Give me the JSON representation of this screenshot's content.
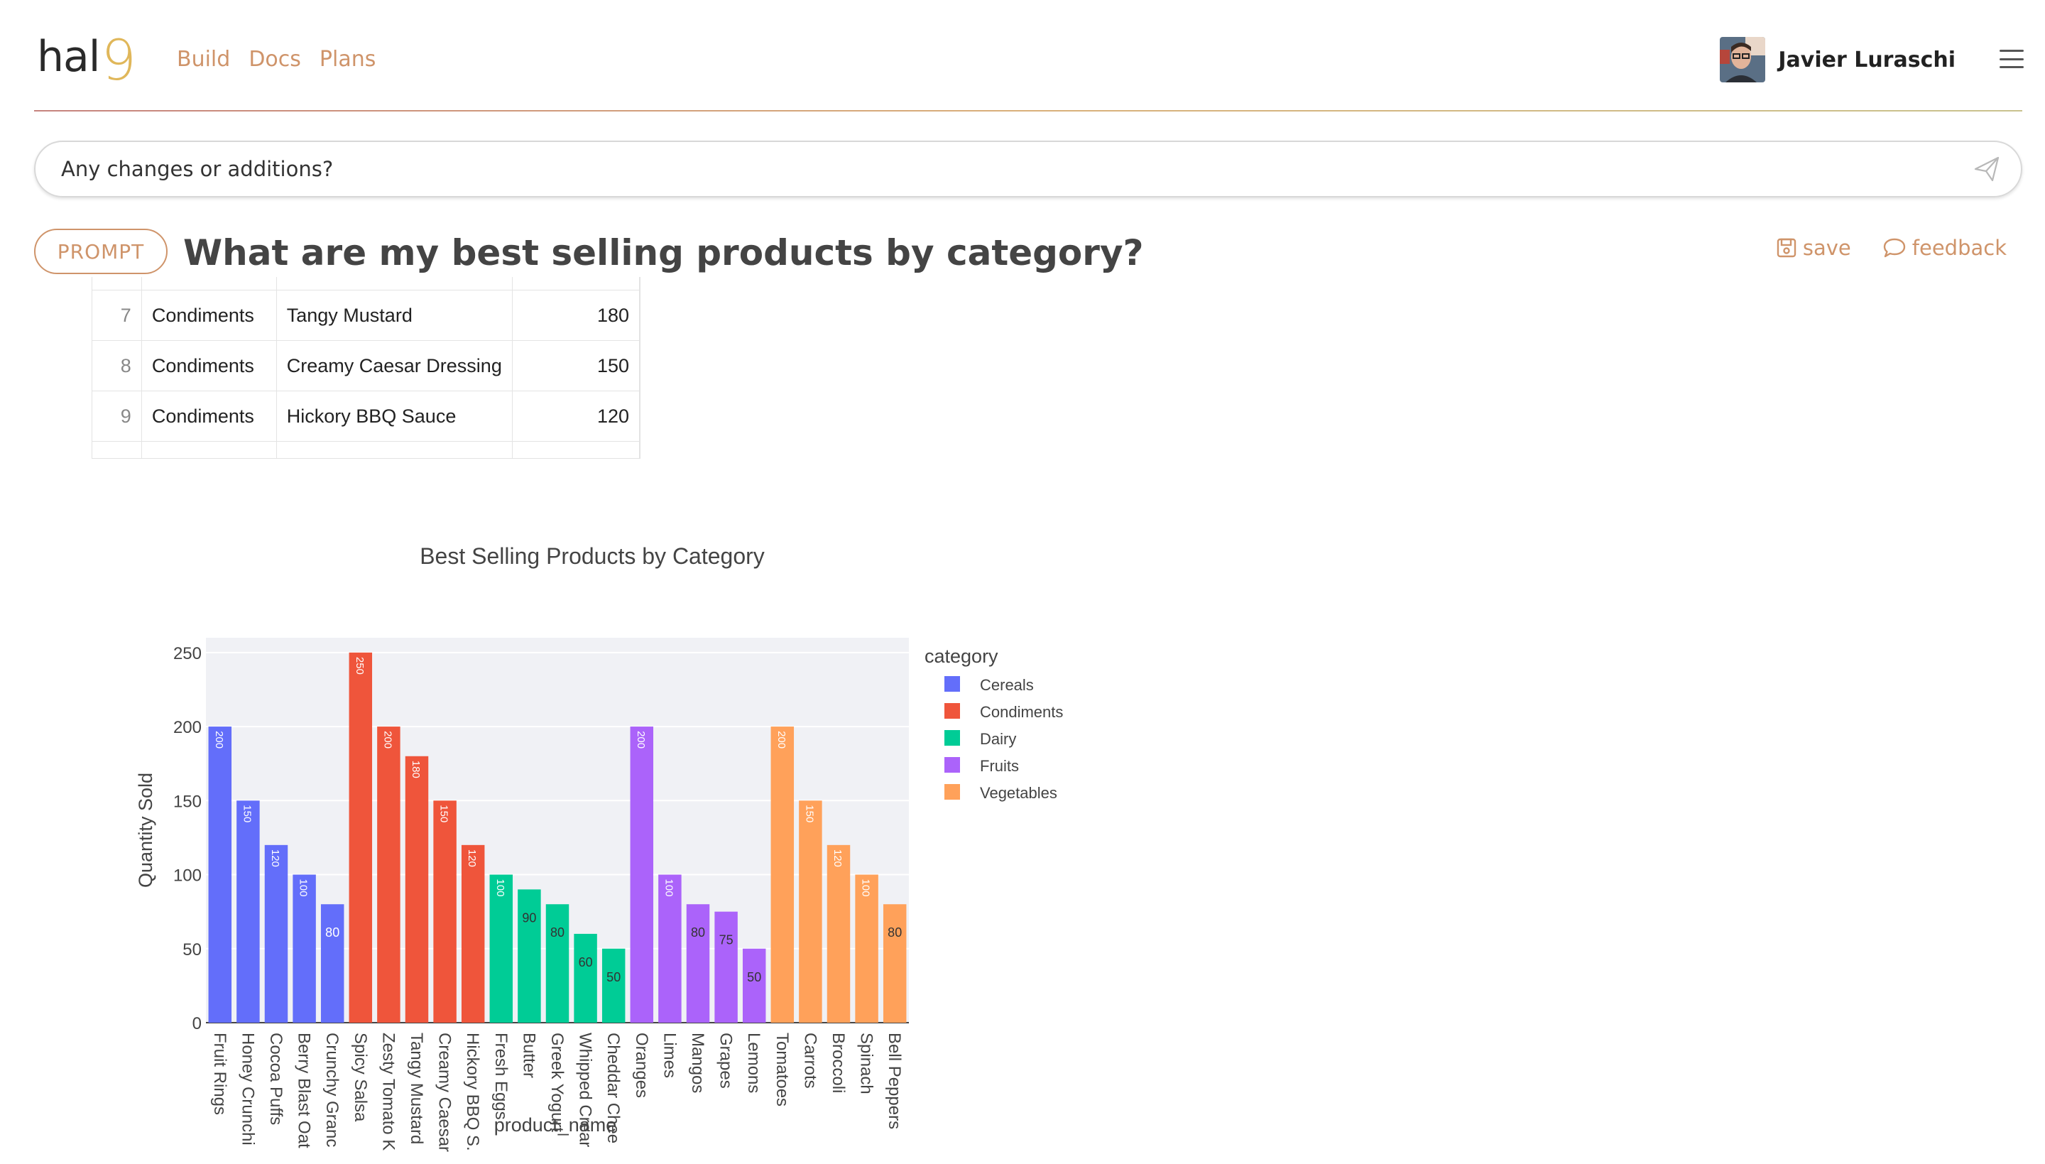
{
  "app": {
    "logo_text": "hal",
    "logo_nine": "9",
    "nav": [
      "Build",
      "Docs",
      "Plans"
    ],
    "user_name": "Javier Luraschi"
  },
  "prompt_input": {
    "placeholder": "Any changes or additions?"
  },
  "prompt": {
    "badge": "PROMPT",
    "title": "What are my best selling products by category?",
    "save_label": "save",
    "feedback_label": "feedback"
  },
  "table": {
    "rows": [
      {
        "index": "7",
        "category": "Condiments",
        "product": "Tangy Mustard",
        "quantity": "180"
      },
      {
        "index": "8",
        "category": "Condiments",
        "product": "Creamy Caesar Dressing",
        "quantity": "150"
      },
      {
        "index": "9",
        "category": "Condiments",
        "product": "Hickory BBQ Sauce",
        "quantity": "120"
      }
    ]
  },
  "colors": {
    "accent": "#cf946a",
    "Cereals": "#636efa",
    "Condiments": "#ef553b",
    "Dairy": "#00cc96",
    "Fruits": "#ab63fa",
    "Vegetables": "#ffa15a",
    "plot_bg": "#f0f1f5"
  },
  "chart_data": {
    "type": "bar",
    "title": "Best Selling Products by Category",
    "xlabel": "product_name",
    "ylabel": "Quantity Sold",
    "ylim": [
      0,
      260
    ],
    "yticks": [
      0,
      50,
      100,
      150,
      200,
      250
    ],
    "grid": true,
    "legend_title": "category",
    "legend_position": "right",
    "series": [
      {
        "name": "Cereals",
        "categories": [
          "Fruit Rings",
          "Honey Crunchi",
          "Cocoa Puffs",
          "Berry Blast Oat",
          "Crunchy Granc"
        ],
        "values": [
          200,
          150,
          120,
          100,
          80
        ]
      },
      {
        "name": "Condiments",
        "categories": [
          "Spicy Salsa",
          "Zesty Tomato K",
          "Tangy Mustard",
          "Creamy Caesar",
          "Hickory BBQ S."
        ],
        "values": [
          250,
          200,
          180,
          150,
          120
        ]
      },
      {
        "name": "Dairy",
        "categories": [
          "Fresh Eggs",
          "Butter",
          "Greek Yogurt",
          "Whipped Crear",
          "Cheddar Chee"
        ],
        "values": [
          100,
          90,
          80,
          60,
          50
        ]
      },
      {
        "name": "Fruits",
        "categories": [
          "Oranges",
          "Limes",
          "Mangos",
          "Grapes",
          "Lemons"
        ],
        "values": [
          200,
          100,
          80,
          75,
          50
        ]
      },
      {
        "name": "Vegetables",
        "categories": [
          "Tomatoes",
          "Carrots",
          "Broccoli",
          "Spinach",
          "Bell Peppers"
        ],
        "values": [
          200,
          150,
          120,
          100,
          80
        ]
      }
    ]
  }
}
